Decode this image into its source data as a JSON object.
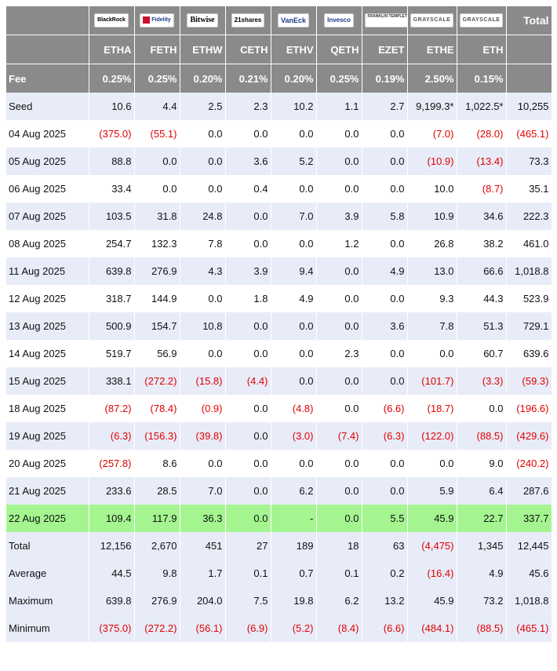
{
  "header": {
    "total_label": "Total",
    "fee_label": "Fee",
    "providers": [
      {
        "logo_text": "BlackRock",
        "ticker": "ETHA",
        "fee": "0.25%"
      },
      {
        "logo_text": "Fidelity",
        "ticker": "FETH",
        "fee": "0.25%"
      },
      {
        "logo_text": "Bitwise",
        "ticker": "ETHW",
        "fee": "0.20%"
      },
      {
        "logo_text": "21shares",
        "ticker": "CETH",
        "fee": "0.21%"
      },
      {
        "logo_text": "VanEck",
        "ticker": "ETHV",
        "fee": "0.20%"
      },
      {
        "logo_text": "Invesco",
        "ticker": "QETH",
        "fee": "0.25%"
      },
      {
        "logo_text": "FRANKLIN TEMPLETON",
        "ticker": "EZET",
        "fee": "0.19%"
      },
      {
        "logo_text": "GRAYSCALE",
        "ticker": "ETHE",
        "fee": "2.50%"
      },
      {
        "logo_text": "GRAYSCALE",
        "ticker": "ETH",
        "fee": "0.15%"
      }
    ]
  },
  "chart_data": {
    "type": "table",
    "title": "",
    "columns": [
      "",
      "ETHA",
      "FETH",
      "ETHW",
      "CETH",
      "ETHV",
      "QETH",
      "EZET",
      "ETHE",
      "ETH",
      "Total"
    ],
    "rows": [
      [
        "Seed",
        "10.6",
        "4.4",
        "2.5",
        "2.3",
        "10.2",
        "1.1",
        "2.7",
        "9,199.3*",
        "1,022.5*",
        "10,255"
      ],
      [
        "04 Aug 2025",
        "(375.0)",
        "(55.1)",
        "0.0",
        "0.0",
        "0.0",
        "0.0",
        "0.0",
        "(7.0)",
        "(28.0)",
        "(465.1)"
      ],
      [
        "05 Aug 2025",
        "88.8",
        "0.0",
        "0.0",
        "3.6",
        "5.2",
        "0.0",
        "0.0",
        "(10.9)",
        "(13.4)",
        "73.3"
      ],
      [
        "06 Aug 2025",
        "33.4",
        "0.0",
        "0.0",
        "0.4",
        "0.0",
        "0.0",
        "0.0",
        "10.0",
        "(8.7)",
        "35.1"
      ],
      [
        "07 Aug 2025",
        "103.5",
        "31.8",
        "24.8",
        "0.0",
        "7.0",
        "3.9",
        "5.8",
        "10.9",
        "34.6",
        "222.3"
      ],
      [
        "08 Aug 2025",
        "254.7",
        "132.3",
        "7.8",
        "0.0",
        "0.0",
        "1.2",
        "0.0",
        "26.8",
        "38.2",
        "461.0"
      ],
      [
        "11 Aug 2025",
        "639.8",
        "276.9",
        "4.3",
        "3.9",
        "9.4",
        "0.0",
        "4.9",
        "13.0",
        "66.6",
        "1,018.8"
      ],
      [
        "12 Aug 2025",
        "318.7",
        "144.9",
        "0.0",
        "1.8",
        "4.9",
        "0.0",
        "0.0",
        "9.3",
        "44.3",
        "523.9"
      ],
      [
        "13 Aug 2025",
        "500.9",
        "154.7",
        "10.8",
        "0.0",
        "0.0",
        "0.0",
        "3.6",
        "7.8",
        "51.3",
        "729.1"
      ],
      [
        "14 Aug 2025",
        "519.7",
        "56.9",
        "0.0",
        "0.0",
        "0.0",
        "2.3",
        "0.0",
        "0.0",
        "60.7",
        "639.6"
      ],
      [
        "15 Aug 2025",
        "338.1",
        "(272.2)",
        "(15.8)",
        "(4.4)",
        "0.0",
        "0.0",
        "0.0",
        "(101.7)",
        "(3.3)",
        "(59.3)"
      ],
      [
        "18 Aug 2025",
        "(87.2)",
        "(78.4)",
        "(0.9)",
        "0.0",
        "(4.8)",
        "0.0",
        "(6.6)",
        "(18.7)",
        "0.0",
        "(196.6)"
      ],
      [
        "19 Aug 2025",
        "(6.3)",
        "(156.3)",
        "(39.8)",
        "0.0",
        "(3.0)",
        "(7.4)",
        "(6.3)",
        "(122.0)",
        "(88.5)",
        "(429.6)"
      ],
      [
        "20 Aug 2025",
        "(257.8)",
        "8.6",
        "0.0",
        "0.0",
        "0.0",
        "0.0",
        "0.0",
        "0.0",
        "9.0",
        "(240.2)"
      ],
      [
        "21 Aug 2025",
        "233.6",
        "28.5",
        "7.0",
        "0.0",
        "6.2",
        "0.0",
        "0.0",
        "5.9",
        "6.4",
        "287.6"
      ],
      [
        "22 Aug 2025",
        "109.4",
        "117.9",
        "36.3",
        "0.0",
        "-",
        "0.0",
        "5.5",
        "45.9",
        "22.7",
        "337.7"
      ],
      [
        "Total",
        "12,156",
        "2,670",
        "451",
        "27",
        "189",
        "18",
        "63",
        "(4,475)",
        "1,345",
        "12,445"
      ],
      [
        "Average",
        "44.5",
        "9.8",
        "1.7",
        "0.1",
        "0.7",
        "0.1",
        "0.2",
        "(16.4)",
        "4.9",
        "45.6"
      ],
      [
        "Maximum",
        "639.8",
        "276.9",
        "204.0",
        "7.5",
        "19.8",
        "6.2",
        "13.2",
        "45.9",
        "73.2",
        "1,018.8"
      ],
      [
        "Minimum",
        "(375.0)",
        "(272.2)",
        "(56.1)",
        "(6.9)",
        "(5.2)",
        "(8.4)",
        "(6.6)",
        "(484.1)",
        "(88.5)",
        "(465.1)"
      ]
    ],
    "highlight_row": "22 Aug 2025",
    "colors": {
      "header_bg": "#8a8a8a",
      "band": "#e8ecf8",
      "highlight": "#a4f590",
      "negative": "#e00000"
    }
  }
}
